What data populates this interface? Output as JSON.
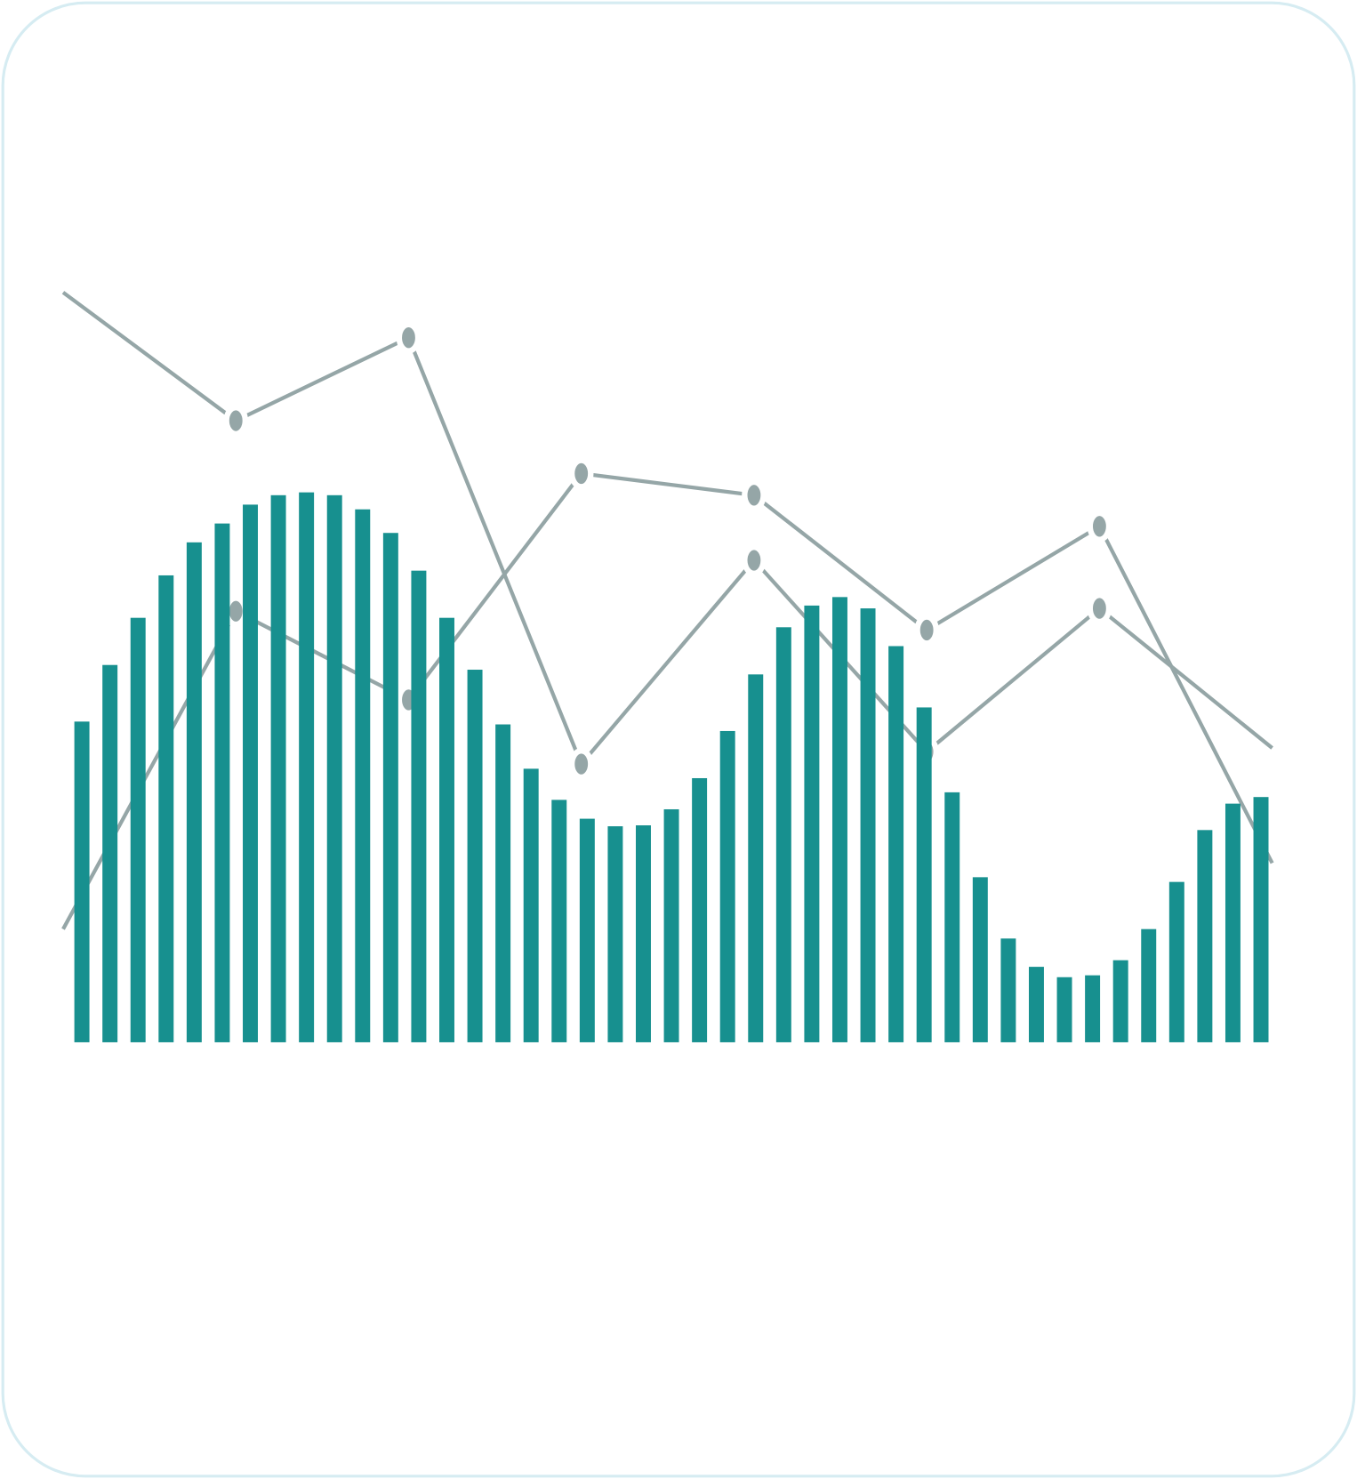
{
  "chart_data": [
    {
      "type": "bar",
      "color": "#17908f",
      "ylim": [
        0,
        100
      ],
      "categories": [
        null,
        null,
        null,
        null,
        null,
        null,
        null,
        null,
        null,
        null,
        null,
        null,
        null,
        null,
        null,
        null,
        null,
        null,
        null,
        null,
        null,
        null,
        null,
        null,
        null,
        null,
        null,
        null,
        null,
        null,
        null,
        null,
        null,
        null,
        null,
        null,
        null,
        null,
        null,
        null,
        null,
        null,
        null
      ],
      "values": [
        34,
        40,
        45,
        49.5,
        53,
        55,
        57,
        58,
        58.3,
        58,
        56.5,
        54,
        50,
        45,
        39.5,
        33.7,
        29,
        25.7,
        23.7,
        22.9,
        23,
        24.7,
        28,
        33,
        39,
        44,
        46.3,
        47.2,
        46,
        42,
        35.5,
        26.5,
        17.5,
        11,
        8,
        6.9,
        7.1,
        8.7,
        12,
        17,
        22.5,
        25.3,
        26
      ]
    },
    {
      "type": "line",
      "ylim": [
        0,
        100
      ],
      "categories": [
        null,
        null,
        null,
        null,
        null,
        null,
        null,
        null
      ],
      "series": [
        {
          "color": "#95a6a7",
          "values": [
            79.5,
            65.9,
            74.7,
            29.5,
            51.1,
            30.8,
            46,
            31.2
          ]
        },
        {
          "color": "#95a6a7",
          "values": [
            12,
            45.7,
            36.3,
            60.3,
            58,
            43.7,
            54.7,
            19
          ]
        }
      ]
    }
  ]
}
